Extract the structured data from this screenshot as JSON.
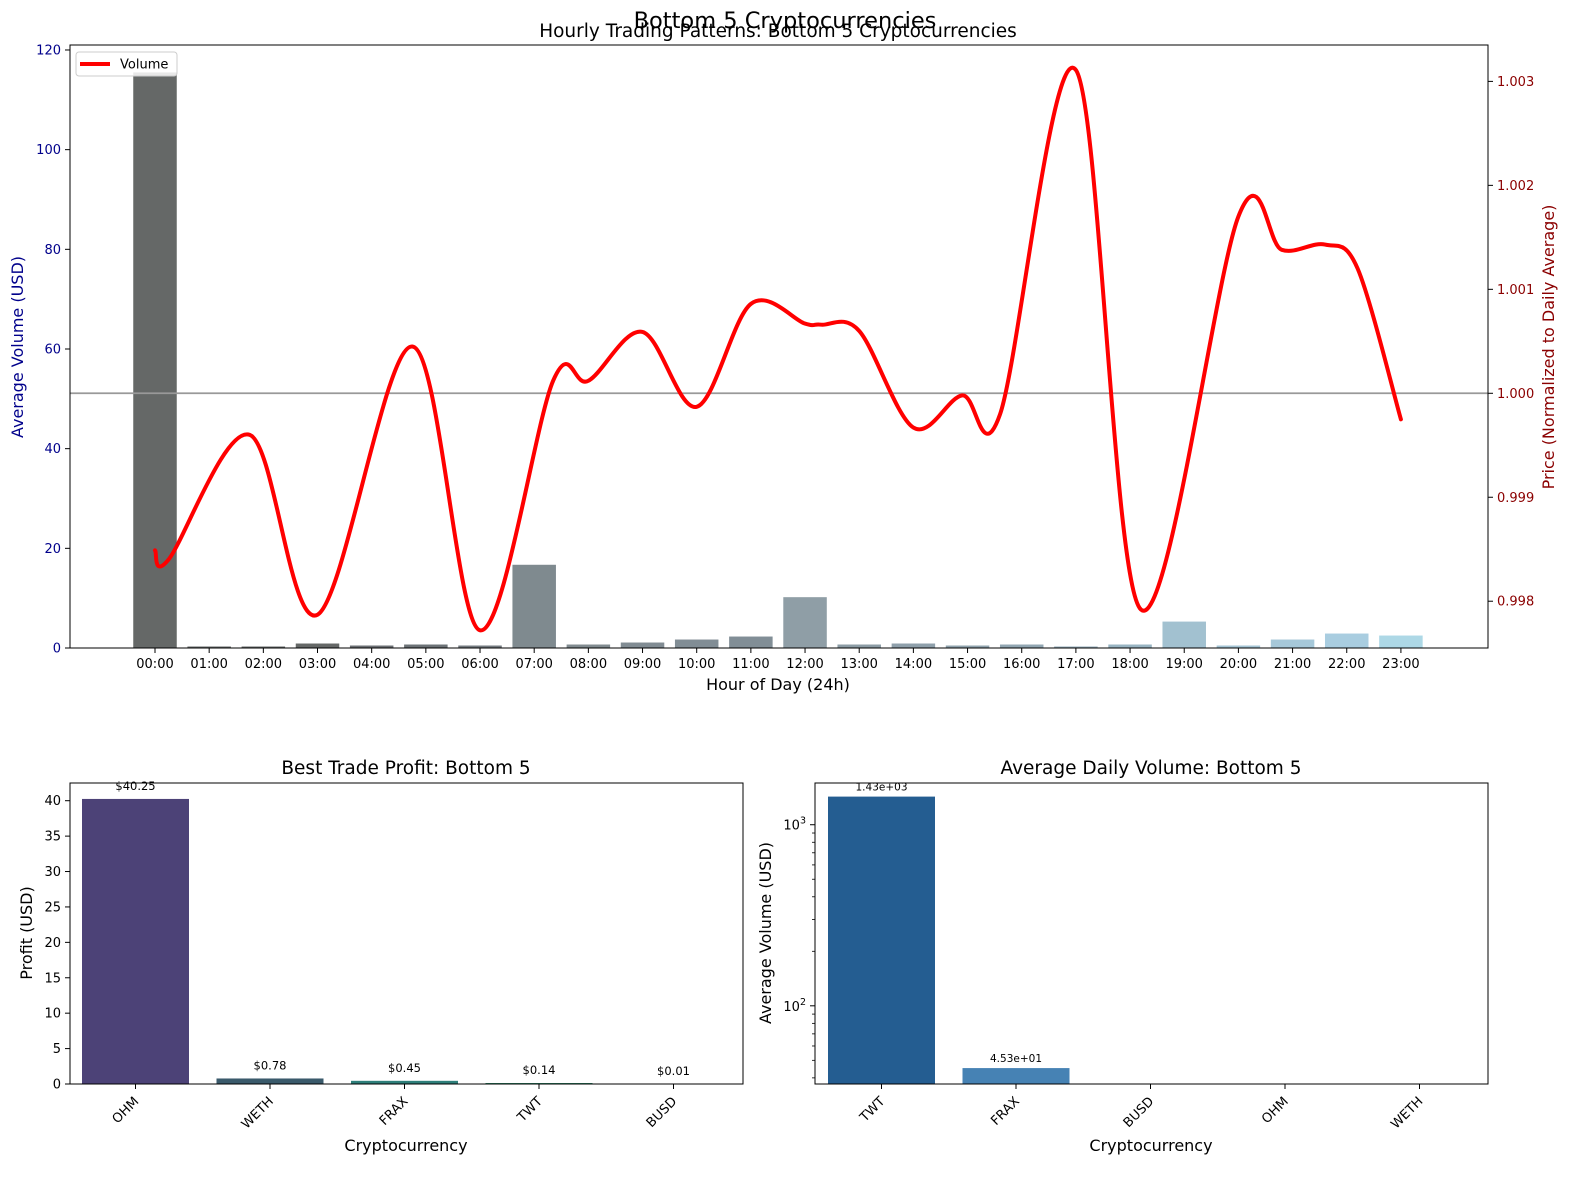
{
  "suptitle": "Bottom 5 Cryptocurrencies",
  "colors": {
    "price_line": "#ff0000",
    "left_axis_text": "#00008b",
    "right_axis_text": "#8b0000",
    "baseline": "#999999"
  },
  "chart_data": [
    {
      "type": "bar",
      "title": "Hourly Trading Patterns: Bottom 5 Cryptocurrencies",
      "xlabel": "Hour of Day (24h)",
      "ylabel": "Average Volume (USD)",
      "y2label": "Price (Normalized to Daily Average)",
      "categories": [
        "00:00",
        "01:00",
        "02:00",
        "03:00",
        "04:00",
        "05:00",
        "06:00",
        "07:00",
        "08:00",
        "09:00",
        "10:00",
        "11:00",
        "12:00",
        "13:00",
        "14:00",
        "15:00",
        "16:00",
        "17:00",
        "18:00",
        "19:00",
        "20:00",
        "21:00",
        "22:00",
        "23:00"
      ],
      "values": [
        115.5,
        0.3,
        0.3,
        0.9,
        0.5,
        0.7,
        0.5,
        16.7,
        0.7,
        1.1,
        1.7,
        2.3,
        10.2,
        0.7,
        0.9,
        0.5,
        0.7,
        0.3,
        0.7,
        5.3,
        0.5,
        1.7,
        2.9,
        2.5
      ],
      "bar_colors": [
        "#656867",
        "#656867",
        "#656867",
        "#656867",
        "#6b6f73",
        "#6c7276",
        "#737a7f",
        "#7f8a8f",
        "#818b90",
        "#818c93",
        "#818d95",
        "#818e96",
        "#8f9ea6",
        "#8c9ca5",
        "#8fa0ab",
        "#90a3ae",
        "#91a6b2",
        "#96aebb",
        "#98b4c2",
        "#a2c1d0",
        "#a5c5d5",
        "#a6c8d9",
        "#a9cde0",
        "#add8e6"
      ],
      "yticks": [
        0,
        20,
        40,
        60,
        80,
        100,
        120
      ],
      "ylim": [
        0,
        121
      ],
      "line_series": {
        "name": "Volume",
        "values": [
          0.99849,
          0.9996,
          0.99787,
          1.00045,
          0.99772,
          1.00012,
          1.00059,
          0.99987,
          1.00086,
          1.00067,
          0.99967,
          0.99998,
          0.9998,
          1.00311,
          0.99792,
          1.0017,
          1.00138,
          1.00143,
          0.99975
        ]
      },
      "line_points": [
        [
          0.0,
          0.99849
        ],
        [
          0.25,
          0.9984
        ],
        [
          1.75,
          0.9996
        ],
        [
          3.0,
          0.99787
        ],
        [
          4.75,
          1.00045
        ],
        [
          6.0,
          0.99772
        ],
        [
          7.35,
          1.00012
        ],
        [
          8.0,
          1.00012
        ],
        [
          9.0,
          1.00059
        ],
        [
          10.0,
          0.99987
        ],
        [
          11.0,
          1.00086
        ],
        [
          12.0,
          1.00067
        ],
        [
          12.3,
          1.00066
        ],
        [
          13.0,
          1.0006
        ],
        [
          14.0,
          0.99967
        ],
        [
          14.9,
          0.99998
        ],
        [
          15.6,
          0.9998
        ],
        [
          17.0,
          1.00311
        ],
        [
          18.2,
          0.99792
        ],
        [
          20.0,
          1.0017
        ],
        [
          20.8,
          1.00138
        ],
        [
          21.6,
          1.00143
        ],
        [
          22.2,
          1.0012
        ],
        [
          23.0,
          0.99975
        ]
      ],
      "y2ticks": [
        "0.998",
        "0.999",
        "1.000",
        "1.001",
        "1.002",
        "1.003"
      ],
      "y2tick_values": [
        0.998,
        0.999,
        1.0,
        1.001,
        1.002,
        1.003
      ],
      "y2lim": [
        0.99755,
        1.00335
      ],
      "hline": 1.0,
      "legend": "upper-left"
    },
    {
      "type": "bar",
      "title": "Best Trade Profit: Bottom 5",
      "xlabel": "Cryptocurrency",
      "ylabel": "Profit (USD)",
      "categories": [
        "OHM",
        "WETH",
        "FRAX",
        "TWT",
        "BUSD"
      ],
      "values": [
        40.25,
        0.78,
        0.45,
        0.14,
        0.01
      ],
      "labels": [
        "$40.25",
        "$0.78",
        "$0.45",
        "$0.14",
        "$0.01"
      ],
      "bar_colors": [
        "#4c4277",
        "#3a5a6b",
        "#2e7f7a",
        "#2e8a6b",
        "#3a9a5c"
      ],
      "yticks": [
        0,
        5,
        10,
        15,
        20,
        25,
        30,
        35,
        40
      ],
      "ylim": [
        0,
        42.5
      ]
    },
    {
      "type": "bar",
      "title": "Average Daily Volume: Bottom 5",
      "xlabel": "Cryptocurrency",
      "ylabel": "Average Volume (USD)",
      "yscale": "log",
      "categories": [
        "TWT",
        "FRAX",
        "BUSD",
        "OHM",
        "WETH"
      ],
      "values": [
        1430,
        45.3,
        0,
        0,
        0
      ],
      "labels": [
        "1.43e+03",
        "4.53e+01",
        "",
        "",
        ""
      ],
      "bar_colors": [
        "#245d91",
        "#4682b4",
        "#4682b4",
        "#4682b4",
        "#4682b4"
      ],
      "yticks": [
        "10",
        "10"
      ],
      "ytick_exps": [
        "3",
        "2"
      ],
      "ytick_values": [
        1000,
        100
      ],
      "ylim": [
        37,
        1700
      ]
    }
  ]
}
